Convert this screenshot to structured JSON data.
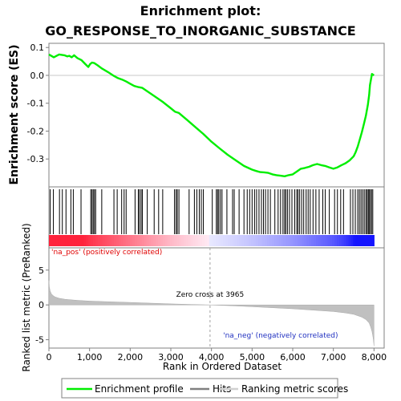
{
  "chart_data": {
    "type": "line",
    "title_line1": "Enrichment plot:",
    "title_line2": "GO_RESPONSE_TO_INORGANIC_SUBSTANCE",
    "es_ylabel": "Enrichment score (ES)",
    "metric_ylabel": "Ranked list metric (PreRanked)",
    "xlabel": "Rank in Ordered Dataset",
    "pos_label": "'na_pos' (positively correlated)",
    "neg_label": "'na_neg' (negatively correlated)",
    "zero_cross_label": "Zero cross at 3965",
    "zero_cross": 3965,
    "xlim": [
      0,
      8250
    ],
    "x_ticks": [
      0,
      1000,
      2000,
      3000,
      4000,
      5000,
      6000,
      7000,
      8000
    ],
    "x_tick_labels": [
      "0",
      "1,000",
      "2,000",
      "3,000",
      "4,000",
      "5,000",
      "6,000",
      "7,000",
      "8,000"
    ],
    "es_ylim": [
      -0.4,
      0.115
    ],
    "es_ticks": [
      0.1,
      0.0,
      -0.1,
      -0.2,
      -0.3
    ],
    "es_tick_labels": [
      "0.1",
      "0.0",
      "-0.1",
      "-0.2",
      "-0.3"
    ],
    "metric_ylim": [
      -6.2,
      8.2
    ],
    "metric_ticks": [
      5,
      0,
      -5
    ],
    "metric_tick_labels": [
      "5",
      "0",
      "-5"
    ],
    "enrichment_profile": {
      "name": "Enrichment profile",
      "color": "#00ee00",
      "x": [
        0,
        120,
        250,
        380,
        450,
        500,
        560,
        620,
        700,
        800,
        900,
        970,
        1010,
        1060,
        1120,
        1200,
        1300,
        1450,
        1600,
        1700,
        1800,
        1900,
        2000,
        2100,
        2200,
        2300,
        2400,
        2600,
        2800,
        3000,
        3100,
        3200,
        3400,
        3600,
        3800,
        4000,
        4200,
        4400,
        4600,
        4800,
        5000,
        5100,
        5200,
        5300,
        5400,
        5500,
        5600,
        5700,
        5800,
        5900,
        6000,
        6100,
        6150,
        6200,
        6300,
        6400,
        6500,
        6600,
        6700,
        6800,
        6900,
        7000,
        7100,
        7200,
        7300,
        7400,
        7500,
        7550,
        7600,
        7650,
        7700,
        7750,
        7800,
        7850,
        7880,
        7900,
        7950,
        8000
      ],
      "y": [
        0.075,
        0.065,
        0.075,
        0.072,
        0.068,
        0.07,
        0.065,
        0.072,
        0.062,
        0.055,
        0.04,
        0.03,
        0.04,
        0.046,
        0.044,
        0.036,
        0.025,
        0.012,
        -0.002,
        -0.01,
        -0.015,
        -0.022,
        -0.03,
        -0.038,
        -0.042,
        -0.045,
        -0.055,
        -0.075,
        -0.095,
        -0.118,
        -0.13,
        -0.135,
        -0.16,
        -0.185,
        -0.21,
        -0.238,
        -0.262,
        -0.285,
        -0.305,
        -0.325,
        -0.338,
        -0.343,
        -0.347,
        -0.348,
        -0.35,
        -0.355,
        -0.358,
        -0.36,
        -0.362,
        -0.358,
        -0.355,
        -0.345,
        -0.34,
        -0.335,
        -0.332,
        -0.328,
        -0.322,
        -0.318,
        -0.322,
        -0.325,
        -0.33,
        -0.335,
        -0.33,
        -0.322,
        -0.315,
        -0.305,
        -0.29,
        -0.275,
        -0.255,
        -0.23,
        -0.205,
        -0.175,
        -0.145,
        -0.105,
        -0.07,
        -0.035,
        0.005,
        0.0
      ]
    },
    "hits": {
      "name": "Hits",
      "color": "#000000",
      "ranks": [
        30,
        110,
        260,
        330,
        420,
        540,
        600,
        790,
        1030,
        1060,
        1090,
        1120,
        1150,
        1300,
        1600,
        1680,
        1790,
        1850,
        1900,
        2120,
        2200,
        2230,
        2270,
        2300,
        2420,
        2590,
        2700,
        2800,
        3090,
        3130,
        3160,
        3200,
        3450,
        3580,
        3640,
        3700,
        3750,
        3800,
        4020,
        4120,
        4150,
        4180,
        4220,
        4260,
        4380,
        4520,
        4560,
        4680,
        4800,
        4880,
        4940,
        5000,
        5060,
        5110,
        5170,
        5230,
        5280,
        5330,
        5390,
        5450,
        5560,
        5640,
        5700,
        5760,
        5800,
        5830,
        5870,
        5920,
        5980,
        6050,
        6100,
        6130,
        6170,
        6220,
        6270,
        6330,
        6380,
        6430,
        6500,
        6570,
        6650,
        6740,
        6800,
        6900,
        7030,
        7100,
        7180,
        7250,
        7420,
        7480,
        7540,
        7600,
        7640,
        7680,
        7720,
        7760,
        7800,
        7830,
        7860,
        7880,
        7910,
        7940,
        7970
      ]
    },
    "ranking_metric": {
      "name": "Ranking metric scores",
      "color": "#c0c0c0",
      "x": [
        0,
        10,
        30,
        60,
        100,
        150,
        250,
        400,
        700,
        1000,
        1500,
        2000,
        2500,
        3000,
        3500,
        3965,
        4500,
        5000,
        5500,
        6000,
        6500,
        7000,
        7300,
        7500,
        7700,
        7800,
        7880,
        7920,
        7950,
        7970,
        7985,
        7995,
        8000
      ],
      "y": [
        3.5,
        2.6,
        2.0,
        1.6,
        1.35,
        1.15,
        0.95,
        0.8,
        0.65,
        0.55,
        0.45,
        0.35,
        0.25,
        0.15,
        0.07,
        0.0,
        -0.12,
        -0.25,
        -0.4,
        -0.55,
        -0.75,
        -0.95,
        -1.15,
        -1.35,
        -1.75,
        -2.1,
        -2.6,
        -3.2,
        -3.8,
        -4.4,
        -5.0,
        -5.6,
        -5.9
      ]
    },
    "legend": [
      "Enrichment profile",
      "Hits",
      "Ranking metric scores"
    ]
  }
}
